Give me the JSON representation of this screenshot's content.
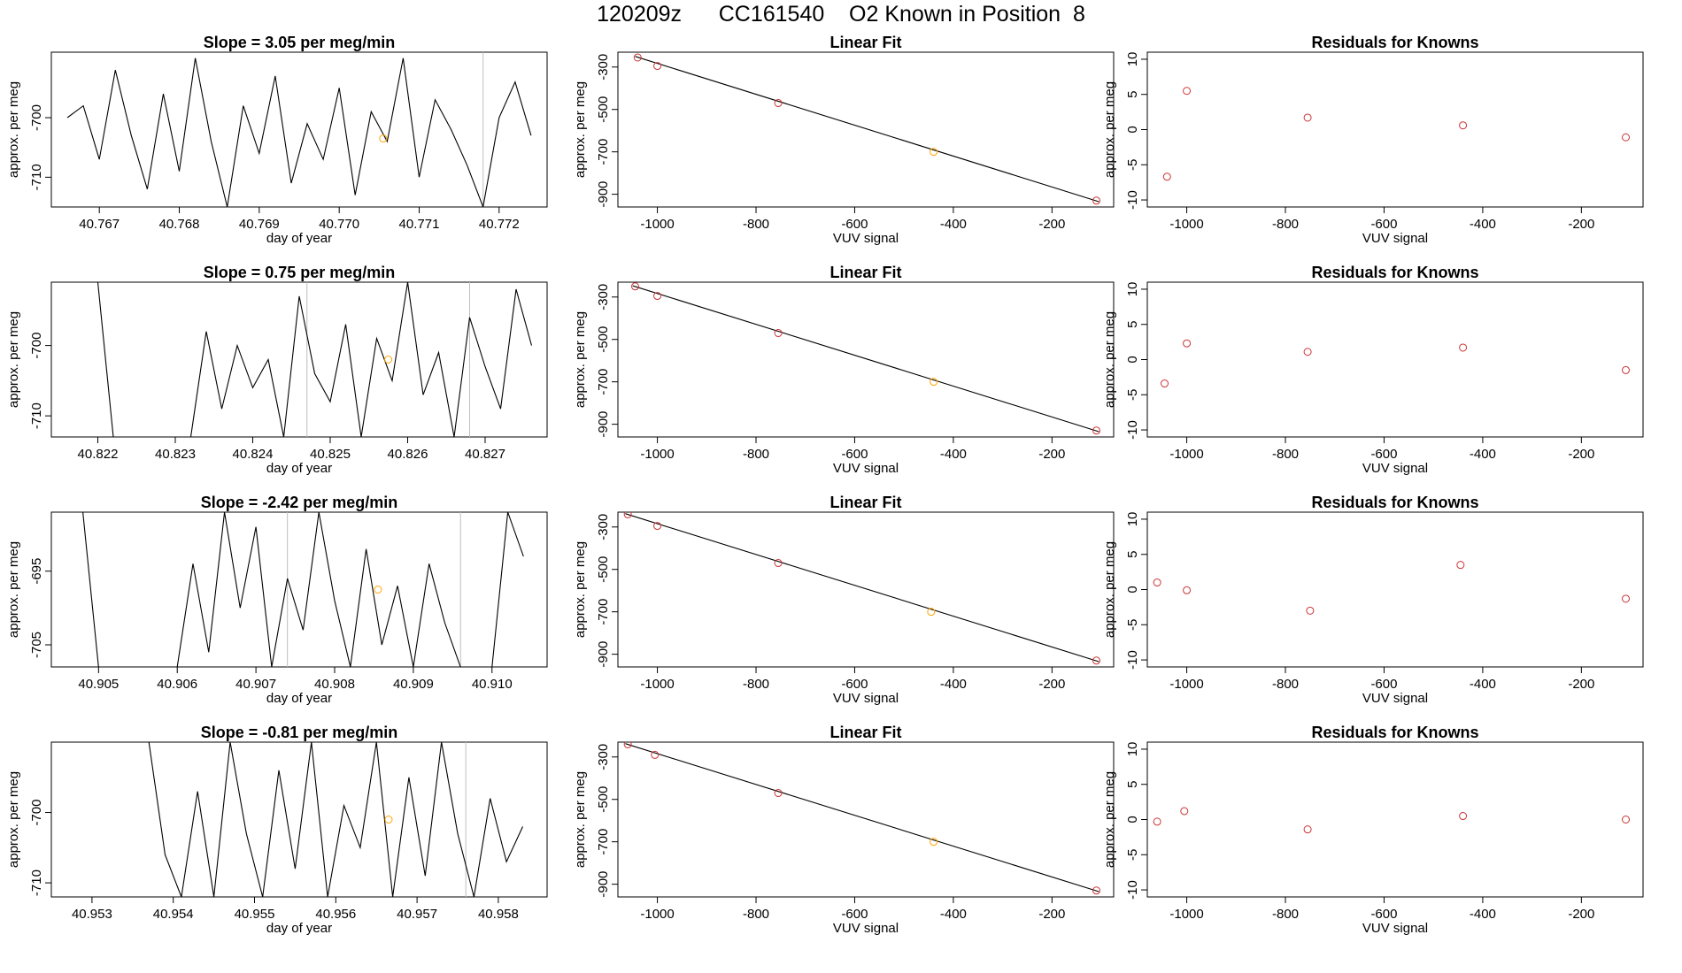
{
  "page_title": "120209z      CC161540    O2 Known in Position  8",
  "colors": {
    "line": "#000000",
    "point": "#cd3333",
    "highlight": "#ffa500",
    "vline": "#bebebe"
  },
  "chart_data": [
    {
      "type": "line",
      "title": "Slope =  3.05  per meg/min",
      "xlabel": "day of year",
      "ylabel": "approx. per meg",
      "xlim": [
        40.7664,
        40.7726
      ],
      "ylim": [
        -715,
        -689
      ],
      "x_ticks": [
        "40.767",
        "40.768",
        "40.769",
        "40.770",
        "40.771",
        "40.772"
      ],
      "y_ticks": [
        "-700",
        "-710"
      ],
      "x": [
        40.7666,
        40.7668,
        40.767,
        40.7672,
        40.7674,
        40.7676,
        40.7678,
        40.768,
        40.7682,
        40.7684,
        40.7686,
        40.7688,
        40.769,
        40.7692,
        40.7694,
        40.7696,
        40.7698,
        40.77,
        40.7702,
        40.7704,
        40.7706,
        40.7708,
        40.771,
        40.7712,
        40.7714,
        40.7716,
        40.7718,
        40.772,
        40.7722,
        40.7724
      ],
      "y": [
        -700,
        -698,
        -707,
        -692,
        -703,
        -712,
        -696,
        -709,
        -690,
        -704,
        -715,
        -698,
        -706,
        -693,
        -711,
        -701,
        -707,
        -695,
        -713,
        -699,
        -704,
        -690,
        -710,
        -697,
        -702,
        -708,
        -715,
        -700,
        -694,
        -703
      ],
      "highlight_point": {
        "x": 40.77055,
        "y": -703.5
      },
      "vlines": [
        40.7718
      ]
    },
    {
      "type": "scatter",
      "title": "Linear Fit",
      "xlabel": "VUV signal",
      "ylabel": "approx. per meg",
      "xlim": [
        -1080,
        -75
      ],
      "ylim": [
        -960,
        -230
      ],
      "x_ticks": [
        "-1000",
        "-800",
        "-600",
        "-400",
        "-200"
      ],
      "y_ticks": [
        "-300",
        "-500",
        "-700",
        "-900"
      ],
      "x": [
        -1040,
        -1000,
        -755,
        -440,
        -110
      ],
      "y": [
        -255,
        -295,
        -470,
        -700,
        -930
      ],
      "highlight_index": 3,
      "fit_line": [
        [
          -1045,
          -250
        ],
        [
          -105,
          -935
        ]
      ]
    },
    {
      "type": "scatter",
      "title": "Residuals for Knowns",
      "xlabel": "",
      "ylabel": "approx. per meg",
      "xlim": [
        -1080,
        -75
      ],
      "ylim": [
        -11,
        11
      ],
      "x_ticks": [
        "-1000",
        "-800",
        "-600",
        "-400",
        "-200"
      ],
      "y_ticks": [
        "10",
        "5",
        "0",
        "-5",
        "-10"
      ],
      "x": [
        -1040,
        -1000,
        -755,
        -440,
        -110
      ],
      "y": [
        -6.7,
        5.5,
        1.7,
        0.6,
        -1.1
      ]
    },
    {
      "type": "line",
      "title": "Slope =  0.75  per meg/min",
      "xlabel": "day of year",
      "ylabel": "approx. per meg",
      "xlim": [
        40.8214,
        40.8278
      ],
      "ylim": [
        -713,
        -691
      ],
      "x_ticks": [
        "40.822",
        "40.823",
        "40.824",
        "40.825",
        "40.826",
        "40.827"
      ],
      "y_ticks": [
        "-700",
        "-710"
      ],
      "x": [
        40.822,
        40.8222,
        40.8232,
        40.8234,
        40.8236,
        40.8238,
        40.824,
        40.8242,
        40.8244,
        40.8246,
        40.8248,
        40.825,
        40.8252,
        40.8254,
        40.8256,
        40.8258,
        40.826,
        40.8262,
        40.8264,
        40.8266,
        40.8268,
        40.827,
        40.8272,
        40.8274,
        40.8276
      ],
      "y": [
        -691,
        -713,
        -713,
        -698,
        -709,
        -700,
        -706,
        -702,
        -713,
        -693,
        -704,
        -708,
        -697,
        -713,
        -699,
        -705,
        -691,
        -707,
        -701,
        -713,
        -696,
        -703,
        -709,
        -692,
        -700
      ],
      "highlight_point": {
        "x": 40.82575,
        "y": -702
      },
      "vlines": [
        40.8247,
        40.8268
      ]
    },
    {
      "type": "scatter",
      "title": "Linear Fit",
      "xlabel": "VUV signal",
      "ylabel": "approx. per meg",
      "xlim": [
        -1080,
        -75
      ],
      "ylim": [
        -960,
        -230
      ],
      "x_ticks": [
        "-1000",
        "-800",
        "-600",
        "-400",
        "-200"
      ],
      "y_ticks": [
        "-300",
        "-500",
        "-700",
        "-900"
      ],
      "x": [
        -1045,
        -1000,
        -755,
        -440,
        -110
      ],
      "y": [
        -250,
        -295,
        -470,
        -700,
        -930
      ],
      "highlight_index": 3,
      "fit_line": [
        [
          -1050,
          -247
        ],
        [
          -105,
          -935
        ]
      ]
    },
    {
      "type": "scatter",
      "title": "Residuals for Knowns",
      "xlabel": "",
      "ylabel": "approx. per meg",
      "xlim": [
        -1080,
        -75
      ],
      "ylim": [
        -11,
        11
      ],
      "x_ticks": [
        "-1000",
        "-800",
        "-600",
        "-400",
        "-200"
      ],
      "y_ticks": [
        "10",
        "5",
        "0",
        "-5",
        "-10"
      ],
      "x": [
        -1045,
        -1000,
        -755,
        -440,
        -110
      ],
      "y": [
        -3.4,
        2.3,
        1.1,
        1.7,
        -1.5
      ]
    },
    {
      "type": "line",
      "title": "Slope =  -2.42  per meg/min",
      "xlabel": "day of year",
      "ylabel": "approx. per meg",
      "xlim": [
        40.9044,
        40.9107
      ],
      "ylim": [
        -708,
        -687
      ],
      "x_ticks": [
        "40.905",
        "40.906",
        "40.907",
        "40.908",
        "40.909",
        "40.910"
      ],
      "y_ticks": [
        "-695",
        "-705"
      ],
      "x": [
        40.9048,
        40.905,
        40.906,
        40.9062,
        40.9064,
        40.9066,
        40.9068,
        40.907,
        40.9072,
        40.9074,
        40.9076,
        40.9078,
        40.908,
        40.9082,
        40.9084,
        40.9086,
        40.9088,
        40.909,
        40.9092,
        40.9094,
        40.9096,
        40.9098,
        40.91,
        40.9102,
        40.9104
      ],
      "y": [
        -687,
        -708,
        -708,
        -694,
        -706,
        -687,
        -700,
        -689,
        -708,
        -696,
        -703,
        -687,
        -699,
        -708,
        -692,
        -705,
        -697,
        -708,
        -694,
        -702,
        -708,
        -708,
        -708,
        -687,
        -693
      ],
      "highlight_point": {
        "x": 40.90855,
        "y": -697.5
      },
      "vlines": [
        40.9074,
        40.9096
      ]
    },
    {
      "type": "scatter",
      "title": "Linear Fit",
      "xlabel": "VUV signal",
      "ylabel": "approx. per meg",
      "xlim": [
        -1080,
        -75
      ],
      "ylim": [
        -960,
        -230
      ],
      "x_ticks": [
        "-1000",
        "-800",
        "-600",
        "-400",
        "-200"
      ],
      "y_ticks": [
        "-300",
        "-500",
        "-700",
        "-900"
      ],
      "x": [
        -1060,
        -1000,
        -755,
        -445,
        -110
      ],
      "y": [
        -240,
        -295,
        -470,
        -700,
        -930
      ],
      "highlight_index": 3,
      "fit_line": [
        [
          -1065,
          -237
        ],
        [
          -105,
          -935
        ]
      ]
    },
    {
      "type": "scatter",
      "title": "Residuals for Knowns",
      "xlabel": "",
      "ylabel": "approx. per meg",
      "xlim": [
        -1080,
        -75
      ],
      "ylim": [
        -11,
        11
      ],
      "x_ticks": [
        "-1000",
        "-800",
        "-600",
        "-400",
        "-200"
      ],
      "y_ticks": [
        "10",
        "5",
        "0",
        "-5",
        "-10"
      ],
      "x": [
        -1060,
        -1000,
        -750,
        -445,
        -110
      ],
      "y": [
        1.0,
        -0.1,
        -3.0,
        3.5,
        -1.3
      ]
    },
    {
      "type": "line",
      "title": "Slope =  -0.81  per meg/min",
      "xlabel": "day of year",
      "ylabel": "approx. per meg",
      "xlim": [
        40.9525,
        40.9586
      ],
      "ylim": [
        -712,
        -690
      ],
      "x_ticks": [
        "40.953",
        "40.954",
        "40.955",
        "40.956",
        "40.957",
        "40.958"
      ],
      "y_ticks": [
        "-700",
        "-710"
      ],
      "x": [
        40.9537,
        40.9539,
        40.9541,
        40.9543,
        40.9545,
        40.9547,
        40.9549,
        40.9551,
        40.9553,
        40.9555,
        40.9557,
        40.9559,
        40.9561,
        40.9563,
        40.9565,
        40.9567,
        40.9569,
        40.9571,
        40.9573,
        40.9575,
        40.9577,
        40.9579,
        40.9581,
        40.9583
      ],
      "y": [
        -690,
        -706,
        -712,
        -697,
        -712,
        -690,
        -703,
        -712,
        -694,
        -708,
        -690,
        -712,
        -699,
        -705,
        -690,
        -712,
        -695,
        -709,
        -690,
        -703,
        -712,
        -698,
        -707,
        -702
      ],
      "highlight_point": {
        "x": 40.95665,
        "y": -701
      },
      "vlines": [
        40.9576
      ]
    },
    {
      "type": "scatter",
      "title": "Linear Fit",
      "xlabel": "VUV signal",
      "ylabel": "approx. per meg",
      "xlim": [
        -1080,
        -75
      ],
      "ylim": [
        -960,
        -230
      ],
      "x_ticks": [
        "-1000",
        "-800",
        "-600",
        "-400",
        "-200"
      ],
      "y_ticks": [
        "-300",
        "-500",
        "-700",
        "-900"
      ],
      "x": [
        -1060,
        -1005,
        -755,
        -440,
        -110
      ],
      "y": [
        -240,
        -290,
        -470,
        -700,
        -930
      ],
      "highlight_index": 3,
      "fit_line": [
        [
          -1065,
          -237
        ],
        [
          -105,
          -935
        ]
      ]
    },
    {
      "type": "scatter",
      "title": "Residuals for Knowns",
      "xlabel": "",
      "ylabel": "approx. per meg",
      "xlim": [
        -1080,
        -75
      ],
      "ylim": [
        -11,
        11
      ],
      "x_ticks": [
        "-1000",
        "-800",
        "-600",
        "-400",
        "-200"
      ],
      "y_ticks": [
        "10",
        "5",
        "0",
        "-5",
        "-10"
      ],
      "x": [
        -1060,
        -1005,
        -755,
        -440,
        -110
      ],
      "y": [
        -0.3,
        1.2,
        -1.4,
        0.5,
        0.0
      ]
    }
  ],
  "residual_xlabels": [
    "VUV signal",
    "VUV signal",
    "VUV signal",
    "VUV signal"
  ]
}
